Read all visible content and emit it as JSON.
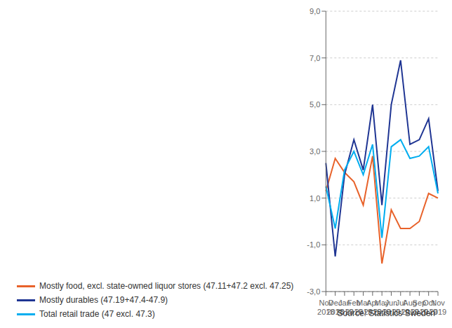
{
  "chart_data": {
    "type": "line",
    "categories": [
      "Nov\n2018",
      "Dec\n2018",
      "Jan\n2019",
      "Feb\n2019",
      "Mar\n2019",
      "Apr\n2019",
      "May\n2019",
      "Jun\n2019",
      "Jul\n2019",
      "Aug\n2019",
      "Sep\n2019",
      "Oct\n2019",
      "Nov\n2019"
    ],
    "series": [
      {
        "name": "Mostly food, excl. state-owned liquor stores (47.11+47.2 excl. 47.25)",
        "color": "#E8622A",
        "values": [
          1.3,
          2.7,
          2.1,
          1.7,
          0.7,
          2.8,
          -1.8,
          0.5,
          -0.3,
          -0.3,
          0.0,
          1.2,
          1.0
        ]
      },
      {
        "name": "Mostly durables (47.19+47.4-47.9)",
        "color": "#1F3593",
        "values": [
          2.5,
          -1.5,
          2.0,
          3.5,
          2.2,
          5.0,
          0.7,
          5.0,
          6.9,
          3.3,
          3.5,
          4.4,
          1.3
        ]
      },
      {
        "name": "Total retail trade (47 excl. 47.3)",
        "color": "#00ADEF",
        "values": [
          1.5,
          -0.3,
          2.2,
          3.0,
          2.0,
          3.3,
          -0.7,
          3.2,
          3.5,
          2.7,
          2.8,
          3.2,
          1.2
        ]
      }
    ],
    "ylim": [
      -3.0,
      9.0
    ],
    "yticks": [
      {
        "value": -3.0,
        "label": "-3,0"
      },
      {
        "value": -1.0,
        "label": "-1,0"
      },
      {
        "value": 1.0,
        "label": "1,0"
      },
      {
        "value": 3.0,
        "label": "3,0"
      },
      {
        "value": 5.0,
        "label": "5,0"
      },
      {
        "value": 7.0,
        "label": "7,0"
      },
      {
        "value": 9.0,
        "label": "9,0"
      }
    ],
    "grid": true,
    "legend": "bottom",
    "annotations": [
      "Source: Statistics Sweden"
    ]
  }
}
